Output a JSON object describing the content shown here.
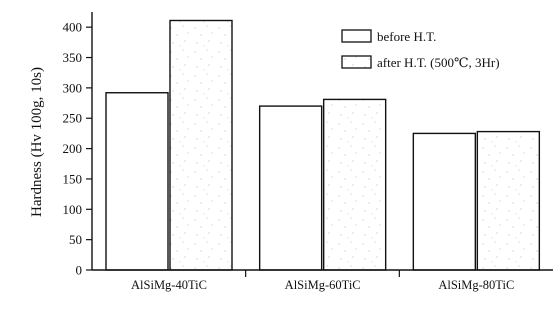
{
  "chart_data": {
    "type": "bar",
    "ylabel": "Hardness (Hv 100g, 10s)",
    "categories": [
      "AlSiMg-40TiC",
      "AlSiMg-60TiC",
      "AlSiMg-80TiC"
    ],
    "series": [
      {
        "name": "before H.T.",
        "values": [
          292,
          270,
          225
        ]
      },
      {
        "name": "after H.T. (500℃, 3Hr)",
        "values": [
          411,
          281,
          228
        ]
      }
    ],
    "ylim": [
      0,
      425
    ],
    "yticks": [
      0,
      50,
      100,
      150,
      200,
      250,
      300,
      350,
      400
    ],
    "ytick_labels": [
      "0",
      "50",
      "100",
      "150",
      "200",
      "250",
      "300",
      "350",
      "400"
    ],
    "grid": false,
    "legend_position": "top-right",
    "colors": {
      "ink": "#111111",
      "bar_fill": "#ffffff",
      "speckle": "#9a9a9a"
    }
  }
}
